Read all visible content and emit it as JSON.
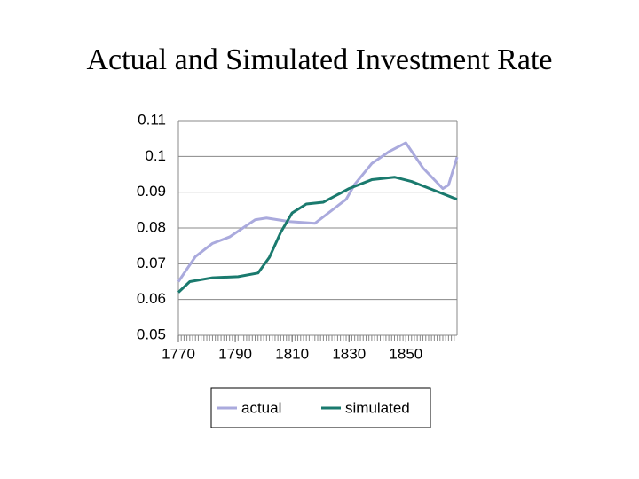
{
  "chart_data": {
    "type": "line",
    "title": "Actual and Simulated Investment Rate",
    "xlim": [
      1770,
      1868
    ],
    "xticks": [
      1770,
      1790,
      1810,
      1830,
      1850
    ],
    "ylim": [
      0.05,
      0.11
    ],
    "yticks": [
      0.05,
      0.06,
      0.07,
      0.08,
      0.09,
      0.1,
      0.11
    ],
    "grid": true,
    "series": [
      {
        "name": "actual",
        "color": "#aaaadd",
        "x": [
          1770,
          1776,
          1782,
          1788,
          1797,
          1801,
          1809,
          1818,
          1829,
          1832,
          1838,
          1844,
          1850,
          1856,
          1863,
          1865,
          1868
        ],
        "values": [
          0.065,
          0.072,
          0.0757,
          0.0775,
          0.0823,
          0.0828,
          0.0818,
          0.0813,
          0.088,
          0.0922,
          0.098,
          0.1013,
          0.1038,
          0.0968,
          0.091,
          0.092,
          0.0998
        ]
      },
      {
        "name": "simulated",
        "color": "#1a7a6e",
        "x": [
          1770,
          1774,
          1782,
          1791,
          1798,
          1802,
          1806,
          1810,
          1815,
          1821,
          1830,
          1838,
          1846,
          1852,
          1860,
          1868
        ],
        "values": [
          0.062,
          0.065,
          0.0661,
          0.0664,
          0.0674,
          0.0718,
          0.0788,
          0.0842,
          0.0867,
          0.0872,
          0.091,
          0.0935,
          0.0942,
          0.093,
          0.0905,
          0.088
        ]
      }
    ]
  }
}
